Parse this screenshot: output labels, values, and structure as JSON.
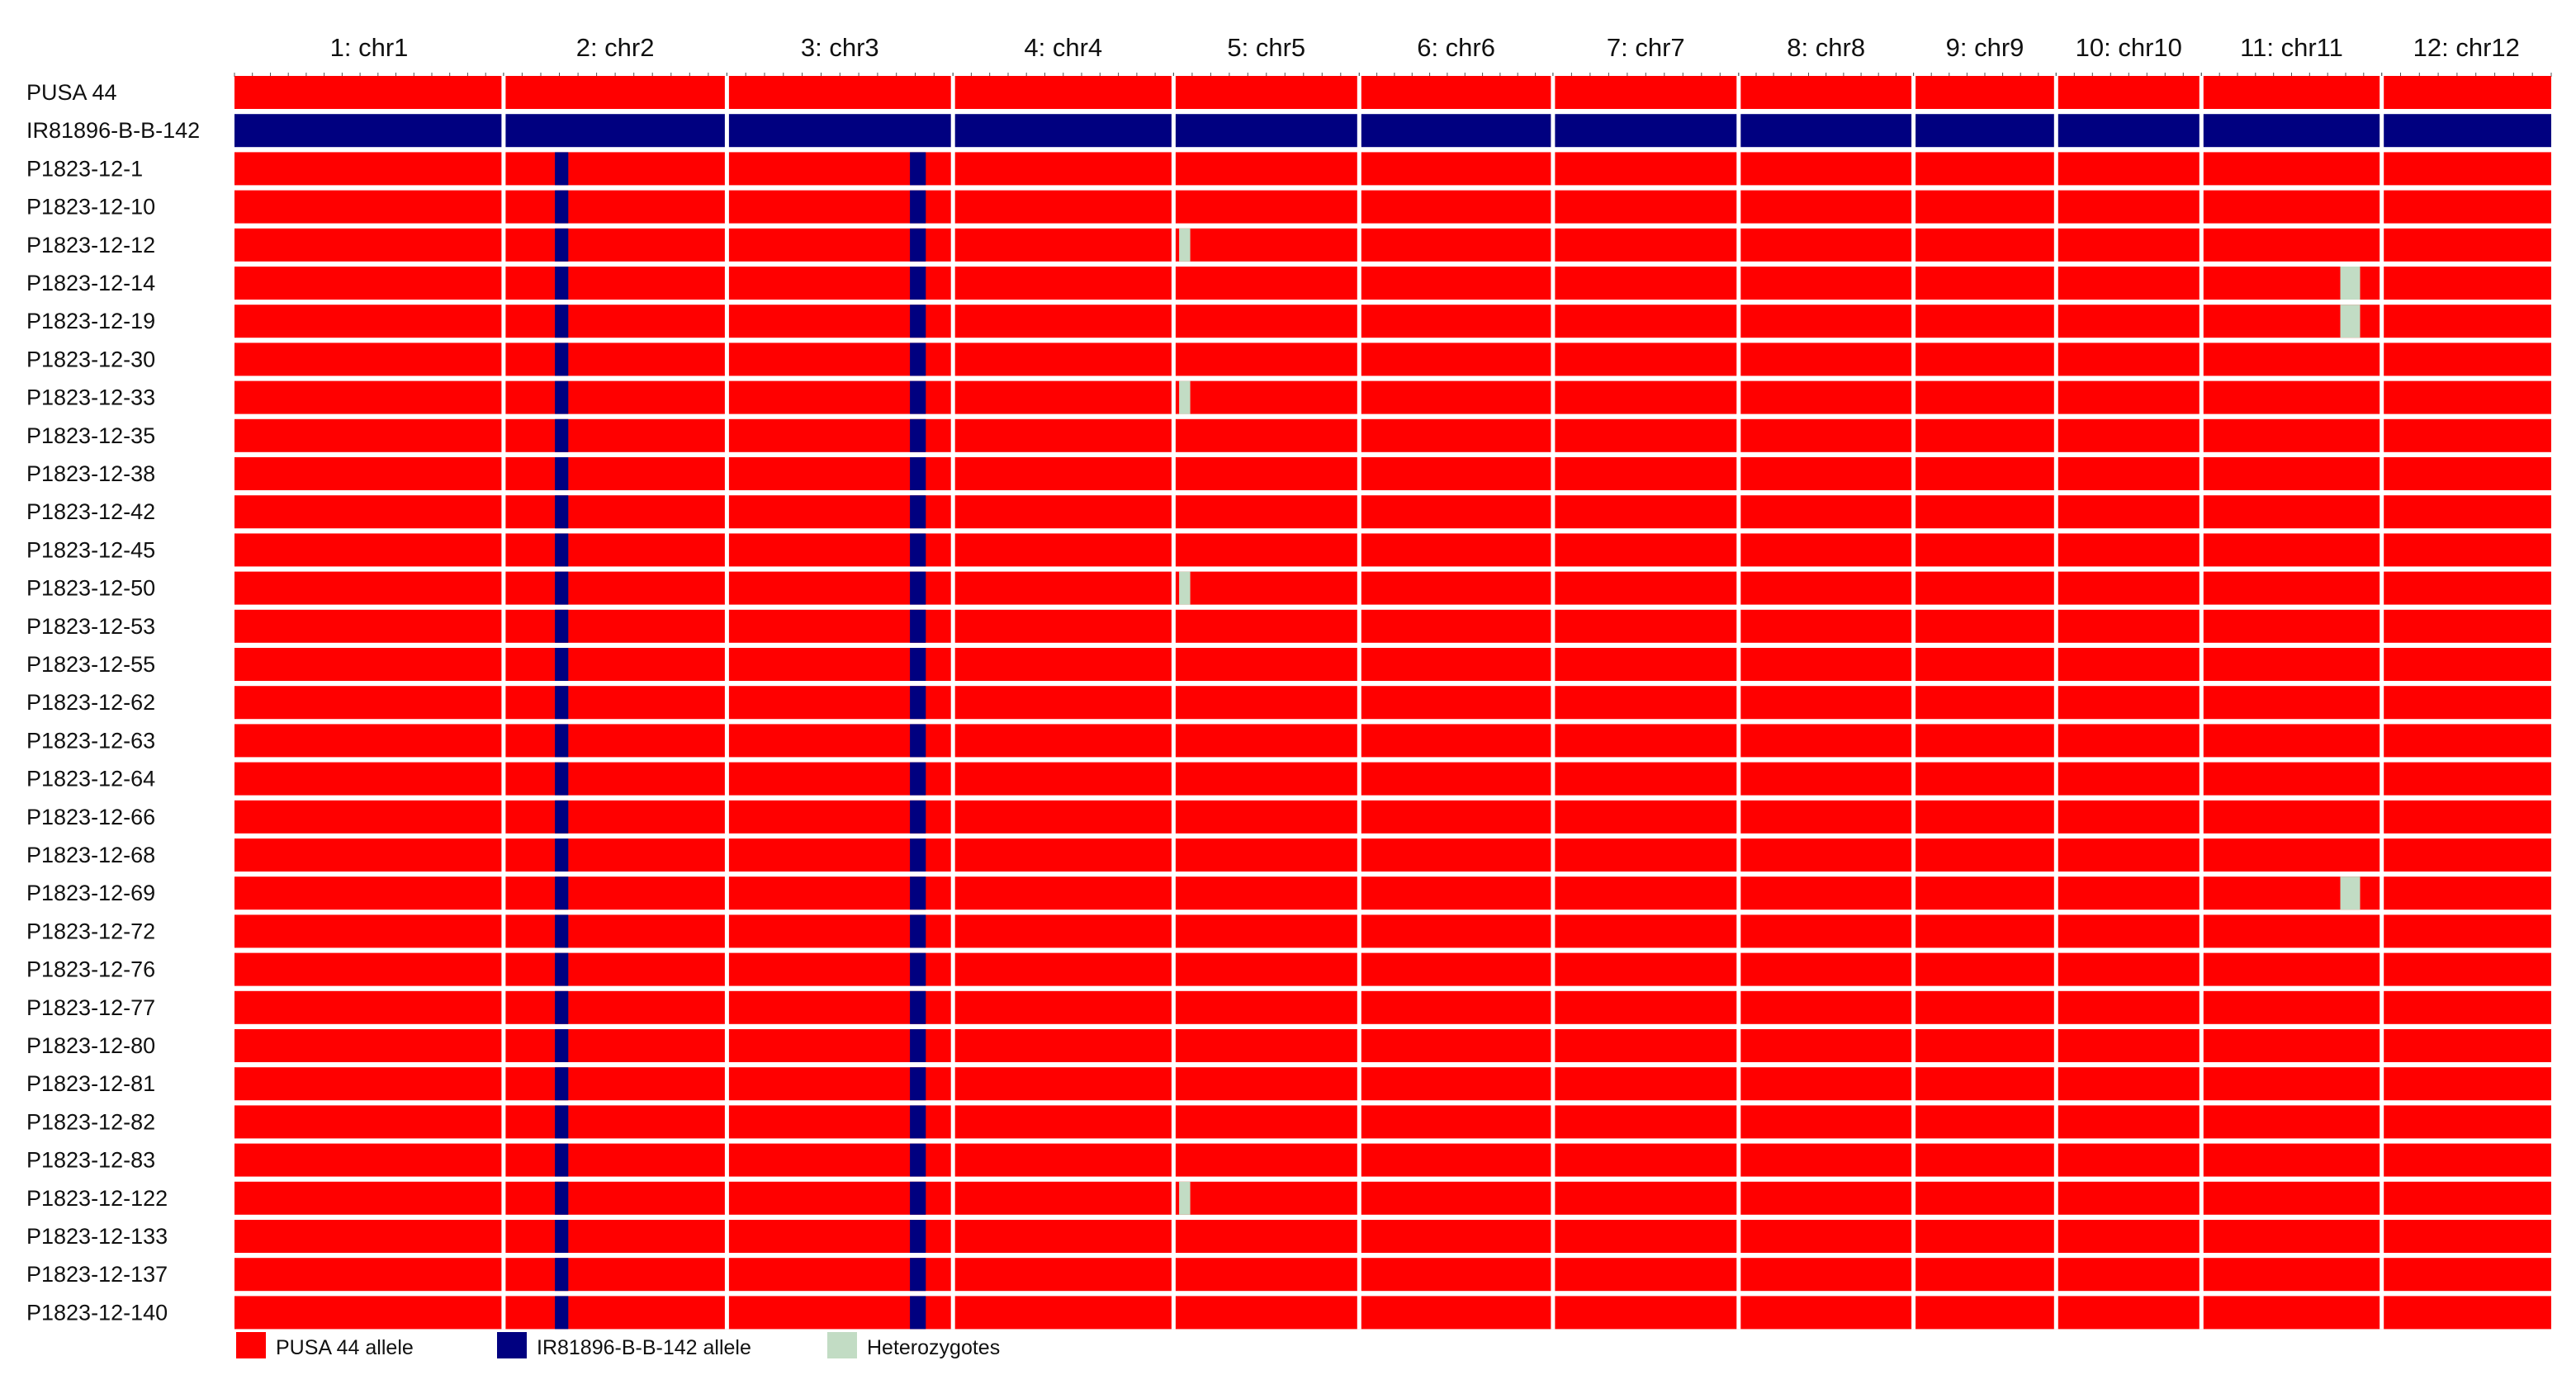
{
  "chart_data": {
    "type": "heatmap",
    "colors": {
      "pusa": "#ff0000",
      "donor": "#000080",
      "het": "#c2dcc4",
      "separator": "#ffffff"
    },
    "chromosomes": [
      {
        "label": "1: chr1",
        "length": 1.0
      },
      {
        "label": "2: chr2",
        "length": 0.83
      },
      {
        "label": "3: chr3",
        "length": 0.84
      },
      {
        "label": "4: chr4",
        "length": 0.82
      },
      {
        "label": "5: chr5",
        "length": 0.69
      },
      {
        "label": "6: chr6",
        "length": 0.72
      },
      {
        "label": "7: chr7",
        "length": 0.69
      },
      {
        "label": "8: chr8",
        "length": 0.65
      },
      {
        "label": "9: chr9",
        "length": 0.53
      },
      {
        "label": "10: chr10",
        "length": 0.54
      },
      {
        "label": "11: chr11",
        "length": 0.67
      },
      {
        "label": "12: chr12",
        "length": 0.63
      }
    ],
    "samples": [
      "PUSA 44",
      "IR81896-B-B-142",
      "P1823-12-1",
      "P1823-12-10",
      "P1823-12-12",
      "P1823-12-14",
      "P1823-12-19",
      "P1823-12-30",
      "P1823-12-33",
      "P1823-12-35",
      "P1823-12-38",
      "P1823-12-42",
      "P1823-12-45",
      "P1823-12-50",
      "P1823-12-53",
      "P1823-12-55",
      "P1823-12-62",
      "P1823-12-63",
      "P1823-12-64",
      "P1823-12-66",
      "P1823-12-68",
      "P1823-12-69",
      "P1823-12-72",
      "P1823-12-76",
      "P1823-12-77",
      "P1823-12-80",
      "P1823-12-81",
      "P1823-12-82",
      "P1823-12-83",
      "P1823-12-122",
      "P1823-12-133",
      "P1823-12-137",
      "P1823-12-140"
    ],
    "default_genotype": "pusa",
    "donor_parent_row": 1,
    "introgressions": [
      {
        "chromosome": 2,
        "start": 0.23,
        "end": 0.29,
        "genotype": "donor",
        "rows": "progeny"
      },
      {
        "chromosome": 3,
        "start": 0.81,
        "end": 0.88,
        "genotype": "donor",
        "rows": "progeny"
      },
      {
        "chromosome": 5,
        "start": 0.03,
        "end": 0.09,
        "genotype": "het",
        "rows": [
          4,
          8,
          13,
          29
        ]
      },
      {
        "chromosome": 11,
        "start": 0.77,
        "end": 0.88,
        "genotype": "het",
        "rows": [
          5,
          6,
          21
        ]
      }
    ],
    "legend": [
      {
        "label": "PUSA 44 allele",
        "genotype": "pusa"
      },
      {
        "label": "IR81896-B-B-142 allele",
        "genotype": "donor"
      },
      {
        "label": "Heterozygotes",
        "genotype": "het"
      }
    ]
  }
}
